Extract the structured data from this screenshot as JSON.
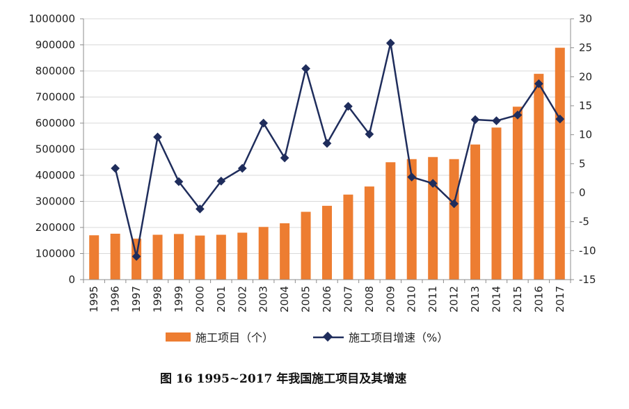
{
  "chart_data": {
    "type": "bar+line",
    "caption": "图 16    1995~2017 年我国施工项目及其增速",
    "categories": [
      "1995",
      "1996",
      "1997",
      "1998",
      "1999",
      "2000",
      "2001",
      "2002",
      "2003",
      "2004",
      "2005",
      "2006",
      "2007",
      "2008",
      "2009",
      "2010",
      "2011",
      "2012",
      "2013",
      "2014",
      "2015",
      "2016",
      "2017"
    ],
    "series": [
      {
        "name": "施工项目（个）",
        "type": "bar",
        "axis": "left",
        "color": "#ED7D31",
        "values": [
          170000,
          176000,
          157000,
          172000,
          175000,
          169000,
          172000,
          180000,
          202000,
          216000,
          260000,
          283000,
          326000,
          357000,
          450000,
          462000,
          470000,
          462000,
          518000,
          583000,
          663000,
          789000,
          889000
        ]
      },
      {
        "name": "施工项目增速（%）",
        "type": "line",
        "axis": "right",
        "color": "#1F2D5C",
        "values": [
          null,
          4.2,
          -11.0,
          9.6,
          1.9,
          -2.8,
          2.0,
          4.2,
          12.0,
          6.0,
          21.4,
          8.5,
          14.9,
          10.1,
          25.8,
          2.7,
          1.6,
          -1.9,
          12.6,
          12.4,
          13.4,
          18.8,
          12.7
        ]
      }
    ],
    "y_left": {
      "min": 0,
      "max": 1000000,
      "ticks": [
        "0",
        "100000",
        "200000",
        "300000",
        "400000",
        "500000",
        "600000",
        "700000",
        "800000",
        "900000",
        "1000000"
      ]
    },
    "y_right": {
      "min": -15,
      "max": 30,
      "ticks": [
        "-15",
        "-10",
        "-5",
        "0",
        "5",
        "10",
        "15",
        "20",
        "25",
        "30"
      ]
    },
    "grid": true,
    "legend_position": "bottom"
  }
}
